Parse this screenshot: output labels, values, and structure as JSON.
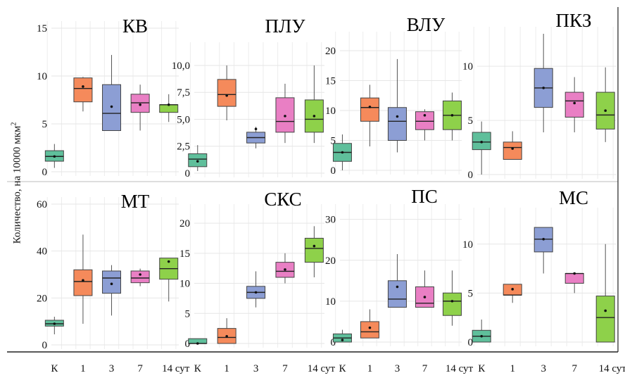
{
  "y_axis_label": "Количество, на 10000 мкм",
  "y_axis_label_exp": "2",
  "x_categories": [
    "К",
    "1",
    "3",
    "7",
    "14 сут"
  ],
  "group_colors": [
    "#5fbf9b",
    "#f58a5b",
    "#8c9ed4",
    "#e97fc4",
    "#8ed14a"
  ],
  "chart_data": [
    {
      "type": "box",
      "title": "КВ",
      "yticks": [
        "0",
        "5",
        "10",
        "15"
      ],
      "ylim": [
        0,
        15
      ],
      "boxes": [
        {
          "min": 0.4,
          "q1": 1.1,
          "median": 1.6,
          "q3": 2.2,
          "max": 2.9,
          "mean": 1.6
        },
        {
          "min": 6.3,
          "q1": 7.3,
          "median": 8.7,
          "q3": 9.8,
          "max": 9.9,
          "mean": 8.9
        },
        {
          "min": 4.3,
          "q1": 4.3,
          "median": 6.1,
          "q3": 9.1,
          "max": 12.2,
          "mean": 6.8
        },
        {
          "min": 4.3,
          "q1": 6.2,
          "median": 7.2,
          "q3": 8.1,
          "max": 9.1,
          "mean": 7.0
        },
        {
          "min": 5.2,
          "q1": 6.2,
          "median": 7.0,
          "q3": 7.0,
          "max": 8.1,
          "mean": 7.0
        }
      ]
    },
    {
      "type": "box",
      "title": "ПЛУ",
      "yticks": [
        "0",
        "2,5",
        "5,0",
        "7,5",
        "10,0"
      ],
      "ylim": [
        0,
        11.5
      ],
      "boxes": [
        {
          "min": 0.2,
          "q1": 0.6,
          "median": 1.3,
          "q3": 1.8,
          "max": 2.6,
          "mean": 1.1
        },
        {
          "min": 4.9,
          "q1": 6.2,
          "median": 7.3,
          "q3": 8.7,
          "max": 10.0,
          "mean": 7.2
        },
        {
          "min": 2.3,
          "q1": 2.8,
          "median": 3.3,
          "q3": 3.8,
          "max": 4.3,
          "mean": 4.1
        },
        {
          "min": 2.8,
          "q1": 3.8,
          "median": 4.8,
          "q3": 7.0,
          "max": 8.3,
          "mean": 5.3
        },
        {
          "min": 2.8,
          "q1": 3.8,
          "median": 5.0,
          "q3": 6.8,
          "max": 10.0,
          "mean": 5.3
        }
      ]
    },
    {
      "type": "box",
      "title": "ВЛУ",
      "yticks": [
        "0",
        "5",
        "10",
        "15",
        "20"
      ],
      "ylim": [
        0,
        22
      ],
      "boxes": [
        {
          "min": 0.0,
          "q1": 1.5,
          "median": 3.0,
          "q3": 4.5,
          "max": 6.0,
          "mean": 3.0
        },
        {
          "min": 4.0,
          "q1": 8.2,
          "median": 10.5,
          "q3": 12.1,
          "max": 14.3,
          "mean": 10.6
        },
        {
          "min": 3.0,
          "q1": 5.0,
          "median": 8.2,
          "q3": 10.5,
          "max": 18.6,
          "mean": 9.0
        },
        {
          "min": 5.0,
          "q1": 6.8,
          "median": 8.2,
          "q3": 9.8,
          "max": 10.2,
          "mean": 9.2
        },
        {
          "min": 5.0,
          "q1": 6.8,
          "median": 9.2,
          "q3": 11.6,
          "max": 13.0,
          "mean": 9.2
        }
      ]
    },
    {
      "type": "box",
      "title": "ПКЗ",
      "yticks": [
        "0",
        "5",
        "10"
      ],
      "ylim": [
        0,
        13
      ],
      "boxes": [
        {
          "min": 0.0,
          "q1": 2.3,
          "median": 3.0,
          "q3": 3.9,
          "max": 4.9,
          "mean": 3.0
        },
        {
          "min": 1.4,
          "q1": 1.4,
          "median": 2.5,
          "q3": 3.0,
          "max": 4.0,
          "mean": 2.4
        },
        {
          "min": 3.9,
          "q1": 6.2,
          "median": 8.0,
          "q3": 9.8,
          "max": 13.0,
          "mean": 8.0
        },
        {
          "min": 3.9,
          "q1": 5.3,
          "median": 6.8,
          "q3": 7.6,
          "max": 9.0,
          "mean": 6.6
        },
        {
          "min": 3.0,
          "q1": 4.2,
          "median": 5.5,
          "q3": 7.6,
          "max": 9.9,
          "mean": 5.9
        }
      ]
    },
    {
      "type": "box",
      "title": "МТ",
      "yticks": [
        "0",
        "20",
        "40",
        "60"
      ],
      "ylim": [
        0,
        60
      ],
      "boxes": [
        {
          "min": 4.5,
          "q1": 8.0,
          "median": 9.0,
          "q3": 10.5,
          "max": 12.0,
          "mean": 9.0
        },
        {
          "min": 9.0,
          "q1": 21.0,
          "median": 27.0,
          "q3": 32.0,
          "max": 47.0,
          "mean": 27.5
        },
        {
          "min": 12.5,
          "q1": 22.0,
          "median": 28.5,
          "q3": 31.5,
          "max": 34.0,
          "mean": 26.0
        },
        {
          "min": 25.0,
          "q1": 26.5,
          "median": 28.5,
          "q3": 31.5,
          "max": 32.5,
          "mean": 30.0
        },
        {
          "min": 18.5,
          "q1": 28.0,
          "median": 32.5,
          "q3": 37.0,
          "max": 37.0,
          "mean": 35.5
        }
      ]
    },
    {
      "type": "box",
      "title": "СКС",
      "yticks": [
        "0",
        "5",
        "10",
        "15",
        "20"
      ],
      "ylim": [
        0,
        22
      ],
      "boxes": [
        {
          "min": 0.0,
          "q1": 0.0,
          "median": 0.0,
          "q3": 0.8,
          "max": 0.8,
          "mean": 0.0
        },
        {
          "min": 0.0,
          "q1": 0.0,
          "median": 1.0,
          "q3": 2.5,
          "max": 4.2,
          "mean": 1.2
        },
        {
          "min": 6.0,
          "q1": 7.5,
          "median": 8.5,
          "q3": 9.5,
          "max": 12.0,
          "mean": 8.5
        },
        {
          "min": 10.0,
          "q1": 11.0,
          "median": 12.0,
          "q3": 13.5,
          "max": 15.0,
          "mean": 12.3
        },
        {
          "min": 11.0,
          "q1": 13.5,
          "median": 15.8,
          "q3": 17.5,
          "max": 19.5,
          "mean": 16.2
        }
      ]
    },
    {
      "type": "box",
      "title": "ПС",
      "yticks": [
        "0",
        "10",
        "20",
        "30"
      ],
      "ylim": [
        0,
        32
      ],
      "boxes": [
        {
          "min": 0.0,
          "q1": 0.0,
          "median": 1.0,
          "q3": 2.0,
          "max": 3.0,
          "mean": 0.5
        },
        {
          "min": 1.0,
          "q1": 1.0,
          "median": 2.5,
          "q3": 5.0,
          "max": 8.0,
          "mean": 3.5
        },
        {
          "min": 8.5,
          "q1": 8.5,
          "median": 10.5,
          "q3": 15.0,
          "max": 21.5,
          "mean": 13.5
        },
        {
          "min": 8.5,
          "q1": 8.5,
          "median": 9.5,
          "q3": 13.5,
          "max": 17.5,
          "mean": 11.0
        },
        {
          "min": 4.0,
          "q1": 6.5,
          "median": 10.0,
          "q3": 12.0,
          "max": 17.5,
          "mean": 10.0
        }
      ]
    },
    {
      "type": "box",
      "title": "МС",
      "yticks": [
        "0",
        "5",
        "10"
      ],
      "ylim": [
        0,
        13
      ],
      "boxes": [
        {
          "min": 0.0,
          "q1": 0.0,
          "median": 0.6,
          "q3": 1.2,
          "max": 2.3,
          "mean": 0.6
        },
        {
          "min": 4.0,
          "q1": 4.8,
          "median": 4.8,
          "q3": 5.9,
          "max": 5.9,
          "mean": 5.4
        },
        {
          "min": 7.0,
          "q1": 9.2,
          "median": 10.5,
          "q3": 11.7,
          "max": 11.7,
          "mean": 10.5
        },
        {
          "min": 5.0,
          "q1": 6.0,
          "median": 7.0,
          "q3": 7.0,
          "max": 7.0,
          "mean": 7.0
        },
        {
          "min": 0.0,
          "q1": 0.0,
          "median": 2.5,
          "q3": 4.7,
          "max": 10.0,
          "mean": 3.2
        }
      ]
    }
  ]
}
